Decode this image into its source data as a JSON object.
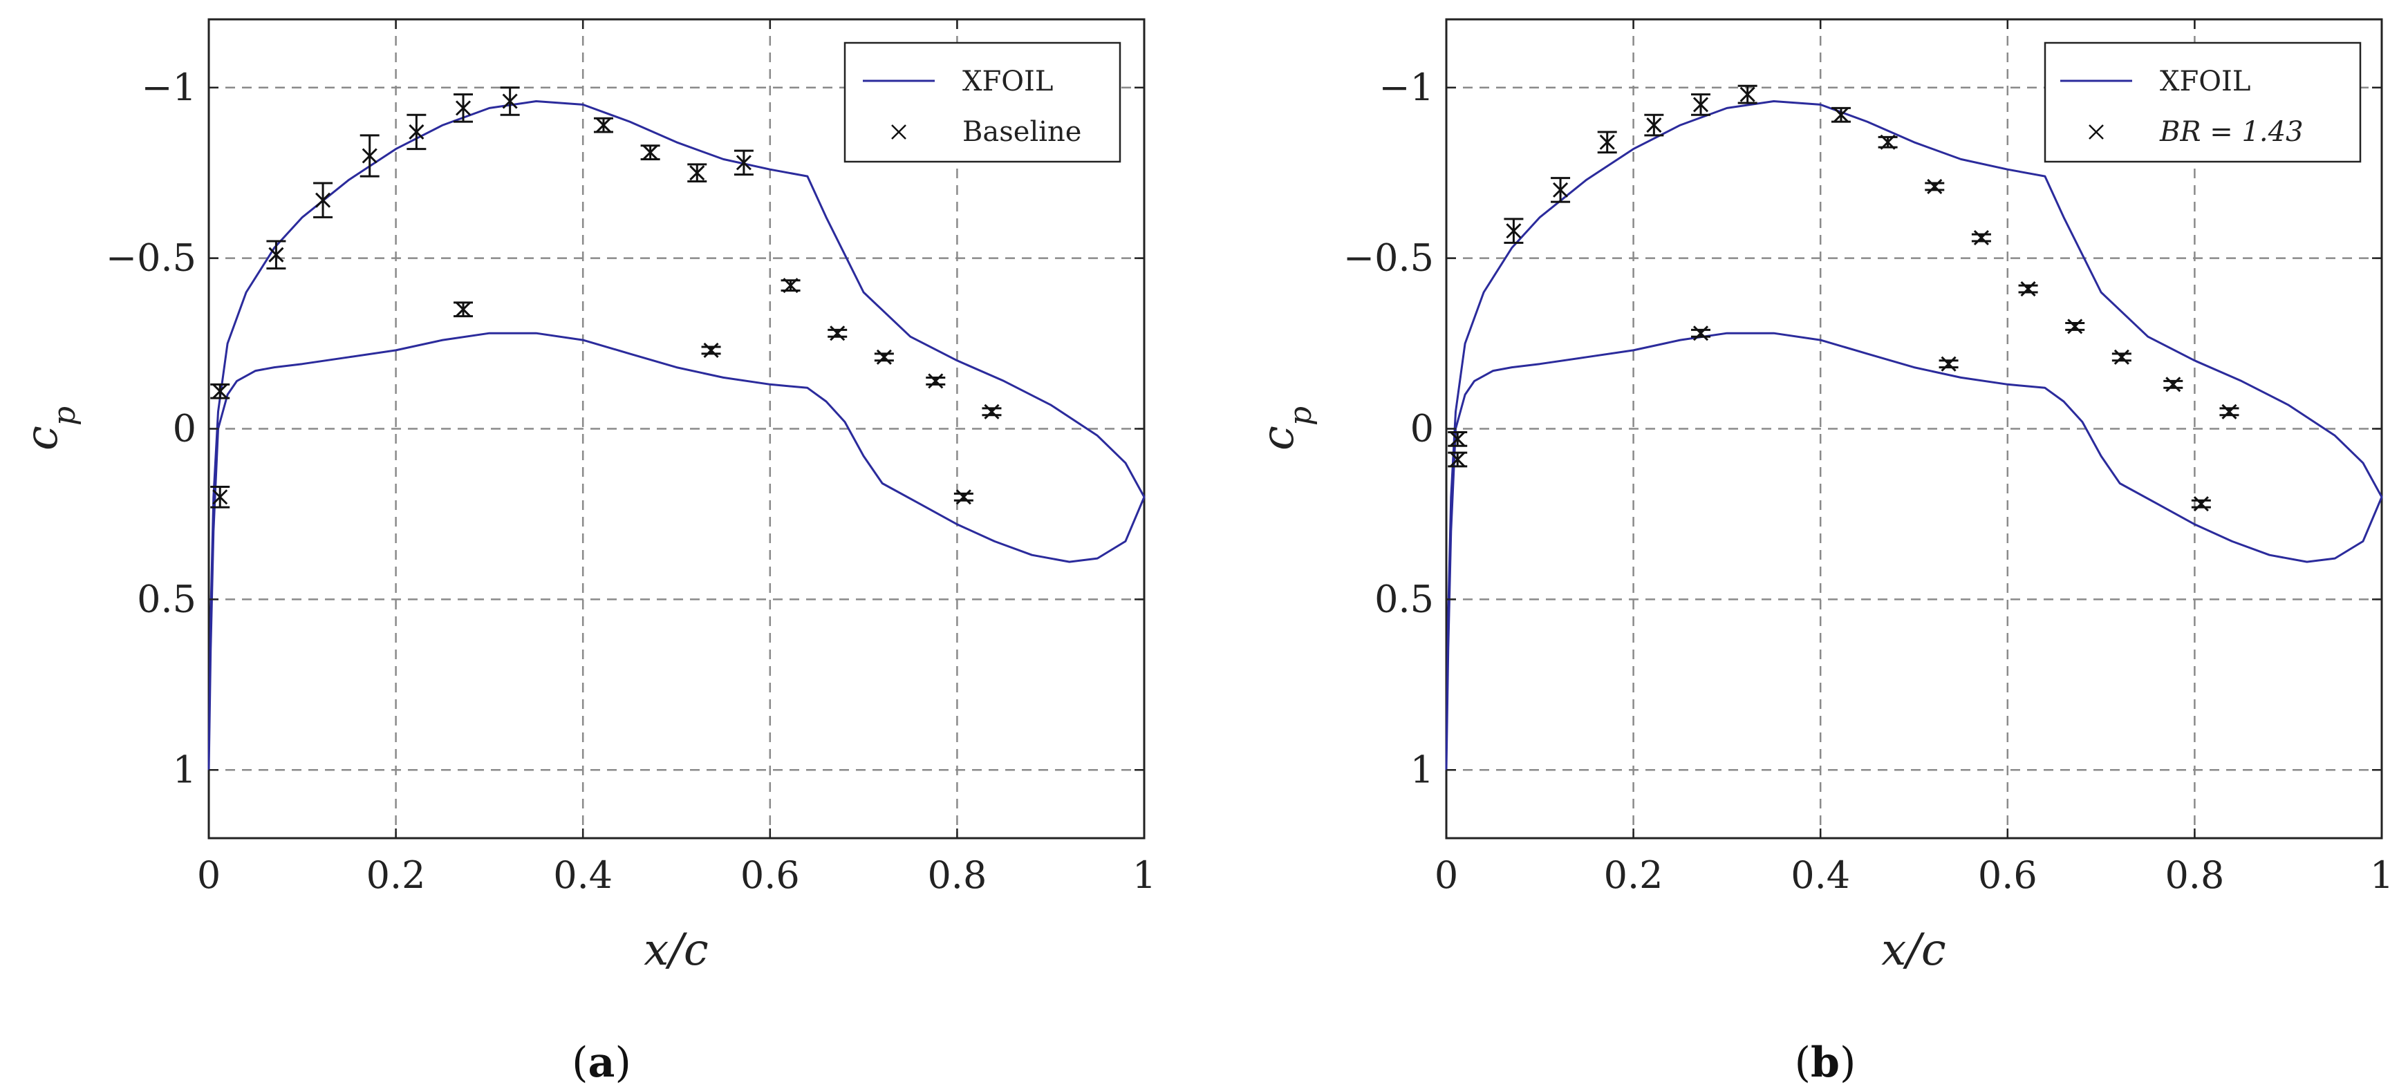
{
  "figure": {
    "colors": {
      "line": "#2b2b9c",
      "marker": "#111111",
      "grid": "#8a8a8a"
    }
  },
  "chart_data": [
    {
      "type": "line",
      "panel": "a",
      "caption_prefix": "(",
      "caption_letter": "a",
      "caption_suffix": ")",
      "xlabel": "x/c",
      "ylabel": "c",
      "ylabel_sub": "p",
      "xlim": [
        0,
        1
      ],
      "ylim": [
        1.2,
        -1.2
      ],
      "y_inverted": true,
      "grid": true,
      "xticks": [
        0,
        0.2,
        0.4,
        0.6,
        0.8,
        1
      ],
      "xtick_labels": [
        "0",
        "0.2",
        "0.4",
        "0.6",
        "0.8",
        "1"
      ],
      "yticks": [
        -1,
        -0.5,
        0,
        0.5,
        1
      ],
      "ytick_labels": [
        "−1",
        "−0.5",
        "0",
        "0.5",
        "1"
      ],
      "legend": {
        "position": "top-right",
        "entries": [
          "XFOIL",
          "Baseline"
        ]
      },
      "series": [
        {
          "name": "XFOIL",
          "kind": "line",
          "x": [
            0,
            0.002,
            0.005,
            0.01,
            0.02,
            0.04,
            0.07,
            0.1,
            0.15,
            0.2,
            0.25,
            0.3,
            0.35,
            0.4,
            0.45,
            0.5,
            0.55,
            0.6,
            0.64,
            0.66,
            0.7,
            0.75,
            0.8,
            0.85,
            0.9,
            0.95,
            0.98,
            1,
            0.98,
            0.95,
            0.92,
            0.88,
            0.84,
            0.8,
            0.76,
            0.72,
            0.7,
            0.68,
            0.66,
            0.64,
            0.6,
            0.55,
            0.5,
            0.45,
            0.4,
            0.35,
            0.3,
            0.25,
            0.2,
            0.15,
            0.1,
            0.07,
            0.05,
            0.03,
            0.02,
            0.01,
            0.005,
            0.002,
            0
          ],
          "y": [
            1.0,
            0.55,
            0.2,
            -0.05,
            -0.25,
            -0.4,
            -0.53,
            -0.62,
            -0.73,
            -0.82,
            -0.89,
            -0.94,
            -0.96,
            -0.95,
            -0.9,
            -0.84,
            -0.79,
            -0.76,
            -0.74,
            -0.62,
            -0.4,
            -0.27,
            -0.2,
            -0.14,
            -0.07,
            0.02,
            0.1,
            0.2,
            0.33,
            0.38,
            0.39,
            0.37,
            0.33,
            0.28,
            0.22,
            0.16,
            0.08,
            -0.02,
            -0.08,
            -0.12,
            -0.13,
            -0.15,
            -0.18,
            -0.22,
            -0.26,
            -0.28,
            -0.28,
            -0.26,
            -0.23,
            -0.21,
            -0.19,
            -0.18,
            -0.17,
            -0.14,
            -0.1,
            0.0,
            0.3,
            0.65,
            1.0
          ]
        },
        {
          "name": "Baseline",
          "kind": "marker-errorbar",
          "x": [
            0.012,
            0.012,
            0.072,
            0.122,
            0.172,
            0.222,
            0.272,
            0.322,
            0.272,
            0.422,
            0.472,
            0.522,
            0.572,
            0.622,
            0.537,
            0.672,
            0.722,
            0.777,
            0.807,
            0.837
          ],
          "y": [
            -0.11,
            0.2,
            -0.51,
            -0.67,
            -0.8,
            -0.87,
            -0.94,
            -0.96,
            -0.35,
            -0.89,
            -0.81,
            -0.75,
            -0.78,
            -0.42,
            -0.23,
            -0.28,
            -0.21,
            -0.14,
            0.2,
            -0.05
          ],
          "err": [
            0.02,
            0.03,
            0.04,
            0.05,
            0.06,
            0.05,
            0.04,
            0.04,
            0.02,
            0.02,
            0.02,
            0.025,
            0.035,
            0.015,
            0.01,
            0.01,
            0.01,
            0.01,
            0.01,
            0.01
          ]
        }
      ]
    },
    {
      "type": "line",
      "panel": "b",
      "caption_prefix": "(",
      "caption_letter": "b",
      "caption_suffix": ")",
      "xlabel": "x/c",
      "ylabel": "c",
      "ylabel_sub": "p",
      "xlim": [
        0,
        1
      ],
      "ylim": [
        1.2,
        -1.2
      ],
      "y_inverted": true,
      "grid": true,
      "xticks": [
        0,
        0.2,
        0.4,
        0.6,
        0.8,
        1
      ],
      "xtick_labels": [
        "0",
        "0.2",
        "0.4",
        "0.6",
        "0.8",
        "1"
      ],
      "yticks": [
        -1,
        -0.5,
        0,
        0.5,
        1
      ],
      "ytick_labels": [
        "−1",
        "−0.5",
        "0",
        "0.5",
        "1"
      ],
      "legend": {
        "position": "top-right",
        "entries": [
          "XFOIL",
          "BR = 1.43"
        ]
      },
      "series": [
        {
          "name": "XFOIL",
          "kind": "line",
          "x": [
            0,
            0.002,
            0.005,
            0.01,
            0.02,
            0.04,
            0.07,
            0.1,
            0.15,
            0.2,
            0.25,
            0.3,
            0.35,
            0.4,
            0.45,
            0.5,
            0.55,
            0.6,
            0.64,
            0.66,
            0.7,
            0.75,
            0.8,
            0.85,
            0.9,
            0.95,
            0.98,
            1,
            0.98,
            0.95,
            0.92,
            0.88,
            0.84,
            0.8,
            0.76,
            0.72,
            0.7,
            0.68,
            0.66,
            0.64,
            0.6,
            0.55,
            0.5,
            0.45,
            0.4,
            0.35,
            0.3,
            0.25,
            0.2,
            0.15,
            0.1,
            0.07,
            0.05,
            0.03,
            0.02,
            0.01,
            0.005,
            0.002,
            0
          ],
          "y": [
            1.0,
            0.55,
            0.2,
            -0.05,
            -0.25,
            -0.4,
            -0.53,
            -0.62,
            -0.73,
            -0.82,
            -0.89,
            -0.94,
            -0.96,
            -0.95,
            -0.9,
            -0.84,
            -0.79,
            -0.76,
            -0.74,
            -0.62,
            -0.4,
            -0.27,
            -0.2,
            -0.14,
            -0.07,
            0.02,
            0.1,
            0.2,
            0.33,
            0.38,
            0.39,
            0.37,
            0.33,
            0.28,
            0.22,
            0.16,
            0.08,
            -0.02,
            -0.08,
            -0.12,
            -0.13,
            -0.15,
            -0.18,
            -0.22,
            -0.26,
            -0.28,
            -0.28,
            -0.26,
            -0.23,
            -0.21,
            -0.19,
            -0.18,
            -0.17,
            -0.14,
            -0.1,
            0.0,
            0.3,
            0.65,
            1.0
          ]
        },
        {
          "name": "BR = 1.43",
          "kind": "marker-errorbar",
          "x": [
            0.012,
            0.012,
            0.072,
            0.122,
            0.172,
            0.222,
            0.272,
            0.322,
            0.272,
            0.422,
            0.472,
            0.522,
            0.572,
            0.622,
            0.537,
            0.672,
            0.722,
            0.777,
            0.807,
            0.837
          ],
          "y": [
            0.03,
            0.09,
            -0.58,
            -0.7,
            -0.84,
            -0.89,
            -0.95,
            -0.98,
            -0.28,
            -0.92,
            -0.84,
            -0.71,
            -0.56,
            -0.41,
            -0.19,
            -0.3,
            -0.21,
            -0.13,
            0.22,
            -0.05
          ],
          "err": [
            0.02,
            0.02,
            0.035,
            0.035,
            0.03,
            0.03,
            0.03,
            0.025,
            0.01,
            0.02,
            0.015,
            0.01,
            0.01,
            0.01,
            0.01,
            0.01,
            0.01,
            0.01,
            0.01,
            0.01
          ]
        }
      ]
    }
  ]
}
